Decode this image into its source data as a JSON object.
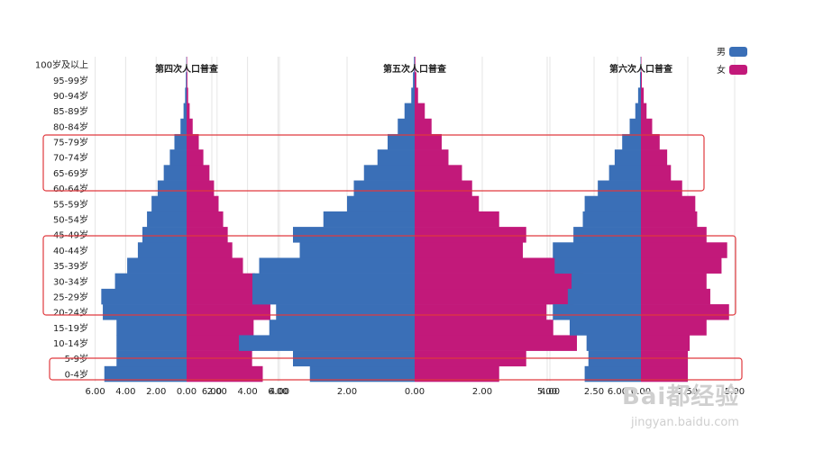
{
  "chart_data": [
    {
      "type": "bar",
      "title": "第四次人口普查",
      "categories": [
        "0-4岁",
        "5-9岁",
        "10-14岁",
        "15-19岁",
        "20-24岁",
        "25-29岁",
        "30-34岁",
        "35-39岁",
        "40-44岁",
        "45-49岁",
        "50-54岁",
        "55-59岁",
        "60-64岁",
        "65-69岁",
        "70-74岁",
        "75-79岁",
        "80-84岁",
        "85-89岁",
        "90-94岁",
        "95-99岁",
        "100岁及以上"
      ],
      "series": [
        {
          "name": "男",
          "values": [
            -5.4,
            -4.6,
            -4.6,
            -4.6,
            -5.5,
            -5.6,
            -4.7,
            -3.9,
            -3.2,
            -2.9,
            -2.6,
            -2.3,
            -1.9,
            -1.5,
            -1.1,
            -0.8,
            -0.4,
            -0.2,
            -0.1,
            -0.05,
            -0.02
          ]
        },
        {
          "name": "女",
          "values": [
            5.0,
            4.3,
            4.4,
            4.4,
            5.5,
            5.3,
            4.5,
            3.7,
            3.0,
            2.7,
            2.4,
            2.1,
            1.8,
            1.5,
            1.1,
            0.8,
            0.4,
            0.2,
            0.1,
            0.05,
            0.02
          ]
        }
      ],
      "xticks": [
        "6.00",
        "4.00",
        "2.00",
        "0.00",
        "2.00",
        "4.00",
        "6.00"
      ],
      "xlim": [
        -6,
        6
      ]
    },
    {
      "type": "bar",
      "title": "第五次人口普查",
      "categories": [
        "0-4岁",
        "5-9岁",
        "10-14岁",
        "15-19岁",
        "20-24岁",
        "25-29岁",
        "30-34岁",
        "35-39岁",
        "40-44岁",
        "45-49岁",
        "50-54岁",
        "55-59岁",
        "60-64岁",
        "65-69岁",
        "70-74岁",
        "75-79岁",
        "80-84岁",
        "85-89岁",
        "90-94岁",
        "95-99岁",
        "100岁及以上"
      ],
      "series": [
        {
          "name": "男",
          "values": [
            -3.1,
            -3.6,
            -5.2,
            -4.3,
            -4.1,
            -4.8,
            -4.8,
            -4.6,
            -3.4,
            -3.6,
            -2.7,
            -2.0,
            -1.8,
            -1.5,
            -1.1,
            -0.8,
            -0.5,
            -0.3,
            -0.1,
            -0.05,
            -0.02
          ]
        },
        {
          "name": "女",
          "values": [
            2.5,
            3.3,
            4.8,
            4.1,
            3.9,
            4.7,
            5.0,
            4.4,
            3.2,
            3.3,
            2.5,
            1.9,
            1.7,
            1.4,
            1.0,
            0.8,
            0.5,
            0.3,
            0.1,
            0.05,
            0.02
          ]
        }
      ],
      "xticks": [
        "6.00",
        "4.00",
        "2.00",
        "0.00",
        "2.00",
        "4.00",
        "6.00"
      ],
      "xlim": [
        -6,
        6
      ]
    },
    {
      "type": "bar",
      "title": "第六次人口普查",
      "categories": [
        "0-4岁",
        "5-9岁",
        "10-14岁",
        "15-19岁",
        "20-24岁",
        "25-29岁",
        "30-34岁",
        "35-39岁",
        "40-44岁",
        "45-49岁",
        "50-54岁",
        "55-59岁",
        "60-64岁",
        "65-69岁",
        "70-74岁",
        "75-79岁",
        "80-84岁",
        "85-89岁",
        "90-94岁",
        "95-99岁",
        "100岁及以上"
      ],
      "series": [
        {
          "name": "男",
          "values": [
            -3.0,
            -2.8,
            -2.9,
            -3.8,
            -4.7,
            -3.9,
            -3.7,
            -4.6,
            -4.7,
            -3.6,
            -3.1,
            -3.0,
            -2.3,
            -1.7,
            -1.4,
            -1.0,
            -0.6,
            -0.3,
            -0.15,
            -0.05,
            -0.02
          ]
        },
        {
          "name": "女",
          "values": [
            2.5,
            2.5,
            2.6,
            3.5,
            4.7,
            3.7,
            3.5,
            4.3,
            4.6,
            3.5,
            3.0,
            2.9,
            2.2,
            1.6,
            1.4,
            1.0,
            0.6,
            0.3,
            0.15,
            0.05,
            0.02
          ]
        }
      ],
      "xticks": [
        "5.00",
        "2.50",
        "0.00",
        "2.50",
        "5.00"
      ],
      "xlim": [
        -5,
        5
      ]
    }
  ],
  "legend": [
    {
      "label": "男",
      "color": "#3a6fb7"
    },
    {
      "label": "女",
      "color": "#c2197a"
    }
  ],
  "colors": {
    "male": "#3a6fb7",
    "female": "#c2197a",
    "highlight": "#e0393e",
    "grid": "#e6e6e6"
  },
  "watermark": {
    "main": "Bai都经验",
    "sub": "jingyan.baidu.com"
  }
}
